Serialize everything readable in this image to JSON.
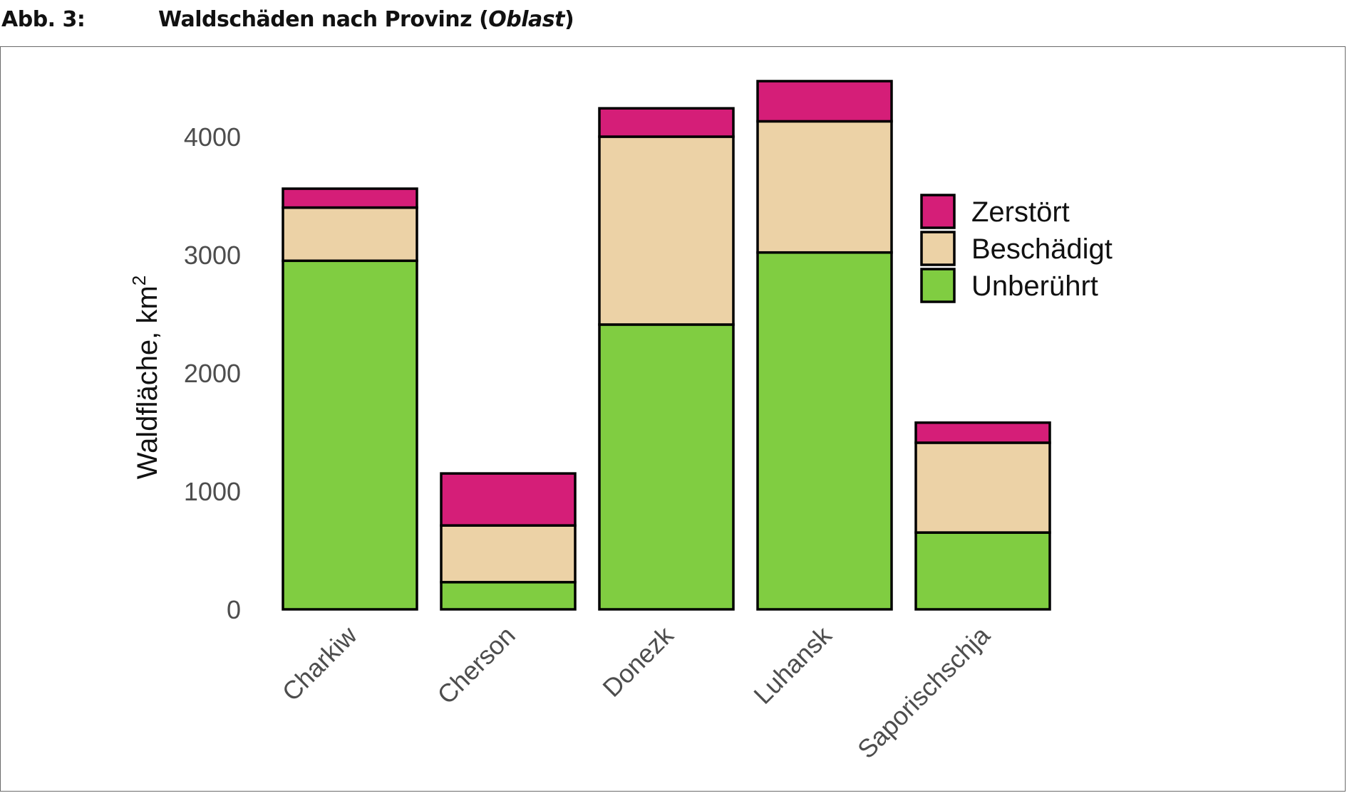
{
  "header": {
    "label": "Abb. 3:",
    "title_main": "Waldschäden nach Provinz (",
    "title_italic": "Oblast",
    "title_end": ")"
  },
  "chart_data": {
    "type": "bar",
    "stacked": true,
    "title": "Waldschäden nach Provinz (Oblast)",
    "xlabel": "",
    "ylabel": "Waldfläche, km",
    "ylabel_superscript": "2",
    "ylim": [
      0,
      4600
    ],
    "yticks": [
      0,
      1000,
      2000,
      3000,
      4000
    ],
    "grid": false,
    "legend_position": "right",
    "categories": [
      "Charkiw",
      "Cherson",
      "Donezk",
      "Luhansk",
      "Saporischschja"
    ],
    "series": [
      {
        "name": "Unberührt",
        "color": "#80cd41",
        "values": [
          2950,
          230,
          2410,
          3020,
          650
        ]
      },
      {
        "name": "Beschädigt",
        "color": "#ecd2a6",
        "values": [
          450,
          480,
          1590,
          1110,
          760
        ]
      },
      {
        "name": "Zerstört",
        "color": "#d51e78",
        "values": [
          160,
          440,
          240,
          340,
          170
        ]
      }
    ],
    "legend_order": [
      "Zerstört",
      "Beschädigt",
      "Unberührt"
    ]
  }
}
